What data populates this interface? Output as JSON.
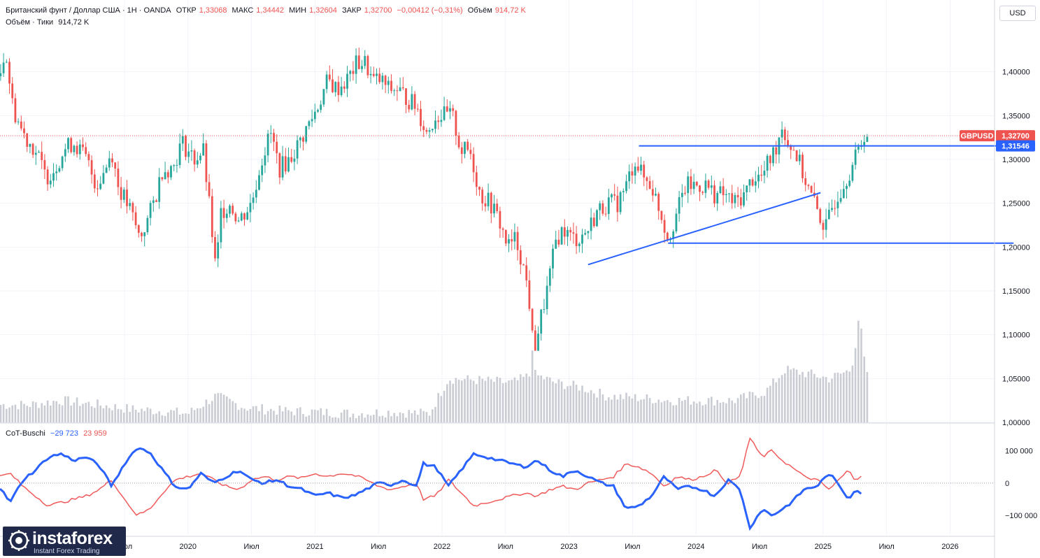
{
  "header": {
    "title": "Британский фунт / Доллар США · 1Н · OANDA",
    "open_label": "ОТКР",
    "open": "1,33068",
    "high_label": "МАКС",
    "high": "1,34442",
    "low_label": "МИН",
    "low": "1,32604",
    "close_label": "ЗАКР",
    "close": "1,32700",
    "change": "−0,00412 (−0,31%)",
    "volume_label": "Объём",
    "volume": "914,72 K",
    "volume_line_label": "Объём · Тики",
    "volume_line_value": "914,72 K"
  },
  "currency": "USD",
  "indicator": {
    "name": "CoT-Buschi",
    "value1": "−29 723",
    "value2": "23 959"
  },
  "brand": {
    "name": "instaforex",
    "tagline": "Instant Forex Trading"
  },
  "colors": {
    "up": "#26a69a",
    "down": "#ef5350",
    "line": "#2962ff",
    "cot_blue": "#2962ff",
    "cot_red": "#f05a5a",
    "volume": "#c9ccd3"
  },
  "chart_data": {
    "type": "candlestick",
    "symbol": "GBPUSD",
    "last_price": "1,32700",
    "level_label": "1,31546",
    "y_ticks": [
      "1,40000",
      "1,35000",
      "1,30000",
      "1,25000",
      "1,20000",
      "1,15000",
      "1,10000",
      "1,05000",
      "1,00000"
    ],
    "y_tick_values": [
      1.4,
      1.35,
      1.3,
      1.25,
      1.2,
      1.15,
      1.1,
      1.05,
      1.0
    ],
    "ylim": [
      1.0,
      1.45
    ],
    "x_ticks": [
      "Июл",
      "2020",
      "Июл",
      "2021",
      "Июл",
      "2022",
      "Июл",
      "2023",
      "Июл",
      "2024",
      "Июл",
      "2025",
      "Июл",
      "2026"
    ],
    "x_tick_times": [
      2019.5,
      2020.0,
      2020.5,
      2021.0,
      2021.5,
      2022.0,
      2022.5,
      2023.0,
      2023.5,
      2024.0,
      2024.5,
      2025.0,
      2025.5,
      2026.0
    ],
    "close_path": [
      [
        2018.52,
        1.395
      ],
      [
        2018.56,
        1.43
      ],
      [
        2018.62,
        1.36
      ],
      [
        2018.7,
        1.33
      ],
      [
        2018.8,
        1.31
      ],
      [
        2018.88,
        1.28
      ],
      [
        2018.95,
        1.29
      ],
      [
        2019.02,
        1.31
      ],
      [
        2019.1,
        1.32
      ],
      [
        2019.2,
        1.3
      ],
      [
        2019.28,
        1.27
      ],
      [
        2019.35,
        1.29
      ],
      [
        2019.4,
        1.31
      ],
      [
        2019.45,
        1.27
      ],
      [
        2019.55,
        1.24
      ],
      [
        2019.62,
        1.21
      ],
      [
        2019.68,
        1.23
      ],
      [
        2019.75,
        1.26
      ],
      [
        2019.8,
        1.29
      ],
      [
        2019.88,
        1.29
      ],
      [
        2019.95,
        1.32
      ],
      [
        2020.0,
        1.31
      ],
      [
        2020.05,
        1.3
      ],
      [
        2020.12,
        1.31
      ],
      [
        2020.18,
        1.23
      ],
      [
        2020.22,
        1.17
      ],
      [
        2020.26,
        1.24
      ],
      [
        2020.33,
        1.25
      ],
      [
        2020.4,
        1.23
      ],
      [
        2020.45,
        1.24
      ],
      [
        2020.5,
        1.25
      ],
      [
        2020.58,
        1.3
      ],
      [
        2020.65,
        1.33
      ],
      [
        2020.72,
        1.29
      ],
      [
        2020.8,
        1.3
      ],
      [
        2020.88,
        1.32
      ],
      [
        2020.95,
        1.34
      ],
      [
        2021.02,
        1.36
      ],
      [
        2021.1,
        1.39
      ],
      [
        2021.17,
        1.38
      ],
      [
        2021.25,
        1.39
      ],
      [
        2021.33,
        1.41
      ],
      [
        2021.4,
        1.41
      ],
      [
        2021.45,
        1.39
      ],
      [
        2021.52,
        1.39
      ],
      [
        2021.58,
        1.38
      ],
      [
        2021.65,
        1.38
      ],
      [
        2021.72,
        1.37
      ],
      [
        2021.8,
        1.36
      ],
      [
        2021.88,
        1.33
      ],
      [
        2021.95,
        1.35
      ],
      [
        2022.02,
        1.35
      ],
      [
        2022.08,
        1.35
      ],
      [
        2022.15,
        1.31
      ],
      [
        2022.22,
        1.31
      ],
      [
        2022.3,
        1.26
      ],
      [
        2022.38,
        1.25
      ],
      [
        2022.45,
        1.23
      ],
      [
        2022.52,
        1.2
      ],
      [
        2022.58,
        1.21
      ],
      [
        2022.62,
        1.19
      ],
      [
        2022.68,
        1.15
      ],
      [
        2022.72,
        1.08
      ],
      [
        2022.78,
        1.12
      ],
      [
        2022.84,
        1.16
      ],
      [
        2022.9,
        1.21
      ],
      [
        2022.96,
        1.22
      ],
      [
        2023.02,
        1.21
      ],
      [
        2023.08,
        1.21
      ],
      [
        2023.15,
        1.22
      ],
      [
        2023.22,
        1.24
      ],
      [
        2023.3,
        1.25
      ],
      [
        2023.38,
        1.25
      ],
      [
        2023.45,
        1.27
      ],
      [
        2023.52,
        1.3
      ],
      [
        2023.58,
        1.28
      ],
      [
        2023.65,
        1.27
      ],
      [
        2023.72,
        1.24
      ],
      [
        2023.78,
        1.21
      ],
      [
        2023.85,
        1.24
      ],
      [
        2023.92,
        1.27
      ],
      [
        2024.0,
        1.27
      ],
      [
        2024.08,
        1.27
      ],
      [
        2024.15,
        1.26
      ],
      [
        2024.22,
        1.26
      ],
      [
        2024.3,
        1.25
      ],
      [
        2024.38,
        1.26
      ],
      [
        2024.45,
        1.28
      ],
      [
        2024.52,
        1.28
      ],
      [
        2024.58,
        1.3
      ],
      [
        2024.62,
        1.31
      ],
      [
        2024.68,
        1.34
      ],
      [
        2024.72,
        1.32
      ],
      [
        2024.78,
        1.31
      ],
      [
        2024.85,
        1.28
      ],
      [
        2024.9,
        1.26
      ],
      [
        2024.96,
        1.24
      ],
      [
        2025.02,
        1.22
      ],
      [
        2025.08,
        1.25
      ],
      [
        2025.15,
        1.27
      ],
      [
        2025.22,
        1.29
      ],
      [
        2025.28,
        1.31
      ],
      [
        2025.32,
        1.33
      ],
      [
        2025.35,
        1.327
      ]
    ],
    "volume_path": [
      [
        2018.52,
        1.02
      ],
      [
        2018.75,
        1.02
      ],
      [
        2019.0,
        1.025
      ],
      [
        2019.3,
        1.02
      ],
      [
        2019.55,
        1.015
      ],
      [
        2019.8,
        1.013
      ],
      [
        2020.0,
        1.01
      ],
      [
        2020.22,
        1.03
      ],
      [
        2020.45,
        1.017
      ],
      [
        2020.75,
        1.013
      ],
      [
        2021.0,
        1.012
      ],
      [
        2021.3,
        1.01
      ],
      [
        2021.6,
        1.012
      ],
      [
        2021.9,
        1.01
      ],
      [
        2022.05,
        1.05
      ],
      [
        2022.3,
        1.048
      ],
      [
        2022.55,
        1.045
      ],
      [
        2022.72,
        1.055
      ],
      [
        2022.9,
        1.045
      ],
      [
        2023.1,
        1.04
      ],
      [
        2023.3,
        1.03
      ],
      [
        2023.55,
        1.028
      ],
      [
        2023.8,
        1.025
      ],
      [
        2024.0,
        1.025
      ],
      [
        2024.3,
        1.025
      ],
      [
        2024.55,
        1.035
      ],
      [
        2024.7,
        1.06
      ],
      [
        2024.9,
        1.055
      ],
      [
        2025.05,
        1.05
      ],
      [
        2025.22,
        1.06
      ],
      [
        2025.28,
        1.11
      ],
      [
        2025.35,
        1.05
      ]
    ],
    "volume_spikes": [
      [
        2022.72,
        1.082
      ],
      [
        2025.28,
        1.116
      ],
      [
        2025.3,
        1.107
      ]
    ],
    "horizontal_levels": [
      {
        "value": 1.31546,
        "from": 2023.55,
        "to": 2026.5
      },
      {
        "value": 1.2045,
        "from": 2023.78,
        "to": 2026.5
      }
    ],
    "trendline": {
      "from": [
        2023.15,
        1.18
      ],
      "to": [
        2024.98,
        1.262
      ]
    },
    "cot": {
      "y_ticks": [
        "100 000",
        "0",
        "−100 000"
      ],
      "y_tick_values": [
        100000,
        0,
        -100000
      ],
      "ylim": [
        -160000,
        170000
      ],
      "blue": [
        [
          2018.52,
          -15000
        ],
        [
          2018.6,
          -60000
        ],
        [
          2018.7,
          10000
        ],
        [
          2018.8,
          40000
        ],
        [
          2018.9,
          80000
        ],
        [
          2019.0,
          90000
        ],
        [
          2019.1,
          70000
        ],
        [
          2019.2,
          80000
        ],
        [
          2019.3,
          55000
        ],
        [
          2019.4,
          -10000
        ],
        [
          2019.5,
          60000
        ],
        [
          2019.6,
          110000
        ],
        [
          2019.7,
          95000
        ],
        [
          2019.8,
          40000
        ],
        [
          2019.9,
          -10000
        ],
        [
          2020.0,
          -20000
        ],
        [
          2020.1,
          30000
        ],
        [
          2020.2,
          0
        ],
        [
          2020.3,
          20000
        ],
        [
          2020.4,
          40000
        ],
        [
          2020.5,
          10000
        ],
        [
          2020.6,
          0
        ],
        [
          2020.7,
          10000
        ],
        [
          2020.8,
          -10000
        ],
        [
          2020.9,
          -20000
        ],
        [
          2021.0,
          -40000
        ],
        [
          2021.1,
          -30000
        ],
        [
          2021.2,
          -45000
        ],
        [
          2021.3,
          -40000
        ],
        [
          2021.4,
          -20000
        ],
        [
          2021.5,
          0
        ],
        [
          2021.6,
          -5000
        ],
        [
          2021.7,
          10000
        ],
        [
          2021.8,
          -10000
        ],
        [
          2021.85,
          60000
        ],
        [
          2021.95,
          50000
        ],
        [
          2022.05,
          -10000
        ],
        [
          2022.15,
          40000
        ],
        [
          2022.25,
          90000
        ],
        [
          2022.35,
          80000
        ],
        [
          2022.45,
          70000
        ],
        [
          2022.55,
          60000
        ],
        [
          2022.65,
          50000
        ],
        [
          2022.75,
          70000
        ],
        [
          2022.85,
          40000
        ],
        [
          2022.95,
          20000
        ],
        [
          2023.05,
          40000
        ],
        [
          2023.15,
          20000
        ],
        [
          2023.25,
          0
        ],
        [
          2023.35,
          -10000
        ],
        [
          2023.45,
          -80000
        ],
        [
          2023.55,
          -70000
        ],
        [
          2023.65,
          -40000
        ],
        [
          2023.75,
          20000
        ],
        [
          2023.85,
          -20000
        ],
        [
          2023.95,
          -10000
        ],
        [
          2024.05,
          -20000
        ],
        [
          2024.15,
          -40000
        ],
        [
          2024.25,
          10000
        ],
        [
          2024.35,
          -20000
        ],
        [
          2024.42,
          -140000
        ],
        [
          2024.52,
          -80000
        ],
        [
          2024.6,
          -100000
        ],
        [
          2024.68,
          -80000
        ],
        [
          2024.75,
          -60000
        ],
        [
          2024.85,
          -20000
        ],
        [
          2024.95,
          -10000
        ],
        [
          2025.05,
          30000
        ],
        [
          2025.15,
          -20000
        ],
        [
          2025.2,
          -50000
        ],
        [
          2025.25,
          -20000
        ],
        [
          2025.3,
          -30000
        ]
      ],
      "red": [
        [
          2018.52,
          20000
        ],
        [
          2018.6,
          30000
        ],
        [
          2018.7,
          -10000
        ],
        [
          2018.8,
          -40000
        ],
        [
          2018.9,
          -70000
        ],
        [
          2019.0,
          -60000
        ],
        [
          2019.1,
          -50000
        ],
        [
          2019.2,
          -40000
        ],
        [
          2019.3,
          -20000
        ],
        [
          2019.4,
          10000
        ],
        [
          2019.5,
          -50000
        ],
        [
          2019.6,
          -100000
        ],
        [
          2019.7,
          -80000
        ],
        [
          2019.8,
          -30000
        ],
        [
          2019.9,
          10000
        ],
        [
          2020.0,
          20000
        ],
        [
          2020.1,
          30000
        ],
        [
          2020.2,
          10000
        ],
        [
          2020.3,
          -10000
        ],
        [
          2020.4,
          -20000
        ],
        [
          2020.5,
          10000
        ],
        [
          2020.6,
          20000
        ],
        [
          2020.7,
          10000
        ],
        [
          2020.8,
          20000
        ],
        [
          2020.9,
          15000
        ],
        [
          2021.0,
          30000
        ],
        [
          2021.1,
          20000
        ],
        [
          2021.2,
          30000
        ],
        [
          2021.3,
          25000
        ],
        [
          2021.4,
          10000
        ],
        [
          2021.5,
          -10000
        ],
        [
          2021.6,
          -20000
        ],
        [
          2021.7,
          -10000
        ],
        [
          2021.8,
          0
        ],
        [
          2021.85,
          -50000
        ],
        [
          2021.95,
          -40000
        ],
        [
          2022.05,
          10000
        ],
        [
          2022.15,
          -30000
        ],
        [
          2022.25,
          -70000
        ],
        [
          2022.35,
          -60000
        ],
        [
          2022.45,
          -50000
        ],
        [
          2022.55,
          -40000
        ],
        [
          2022.65,
          -30000
        ],
        [
          2022.75,
          -40000
        ],
        [
          2022.85,
          -20000
        ],
        [
          2022.95,
          -10000
        ],
        [
          2023.05,
          -20000
        ],
        [
          2023.15,
          0
        ],
        [
          2023.25,
          10000
        ],
        [
          2023.35,
          20000
        ],
        [
          2023.45,
          60000
        ],
        [
          2023.55,
          50000
        ],
        [
          2023.65,
          30000
        ],
        [
          2023.75,
          -10000
        ],
        [
          2023.85,
          20000
        ],
        [
          2023.95,
          10000
        ],
        [
          2024.05,
          20000
        ],
        [
          2024.15,
          40000
        ],
        [
          2024.25,
          0
        ],
        [
          2024.35,
          20000
        ],
        [
          2024.42,
          140000
        ],
        [
          2024.52,
          80000
        ],
        [
          2024.6,
          100000
        ],
        [
          2024.68,
          70000
        ],
        [
          2024.75,
          50000
        ],
        [
          2024.85,
          20000
        ],
        [
          2024.95,
          10000
        ],
        [
          2025.05,
          -20000
        ],
        [
          2025.15,
          20000
        ],
        [
          2025.2,
          40000
        ],
        [
          2025.25,
          10000
        ],
        [
          2025.3,
          24000
        ]
      ]
    }
  }
}
